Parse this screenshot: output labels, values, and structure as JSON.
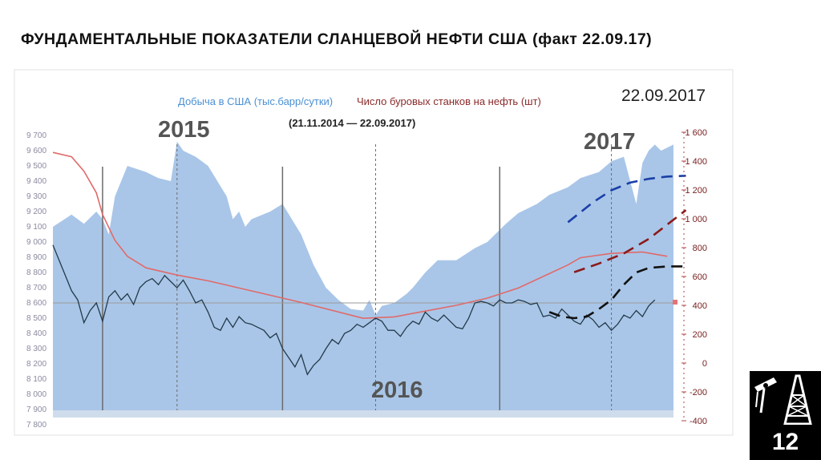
{
  "slide": {
    "title": "ФУНДАМЕНТАЛЬНЫЕ ПОКАЗАТЕЛИ СЛАНЦЕВОЙ НЕФТИ США (факт 22.09.17)",
    "page_number": "12"
  },
  "chart_data": {
    "type": "area",
    "title_part1": "Добыча в США (тыс.барр/сутки)",
    "title_part2": "Число буровых станков на нефть (шт)",
    "subtitle": "(21.11.2014 — 22.09.2017)",
    "date_stamp": "22.09.2017",
    "year_labels": [
      "2015",
      "2016",
      "2017"
    ],
    "left_axis": {
      "ticks": [
        7800,
        7900,
        8000,
        8100,
        8200,
        8300,
        8400,
        8500,
        8600,
        8700,
        8800,
        8900,
        9000,
        9100,
        9200,
        9300,
        9400,
        9500,
        9600,
        9700
      ],
      "ylim": [
        7800,
        9700
      ]
    },
    "right_axis": {
      "ticks": [
        -400,
        -200,
        0,
        200,
        400,
        600,
        800,
        1000,
        1200,
        1400,
        1600
      ],
      "ylim": [
        -400,
        1600
      ]
    },
    "series": [
      {
        "name": "Добыча в США (тыс.барр/сутки)",
        "axis": "left",
        "color": "#a9c6e8",
        "x": [
          0,
          0.03,
          0.05,
          0.07,
          0.08,
          0.09,
          0.1,
          0.12,
          0.15,
          0.17,
          0.19,
          0.2,
          0.21,
          0.23,
          0.25,
          0.28,
          0.29,
          0.3,
          0.31,
          0.32,
          0.35,
          0.37,
          0.4,
          0.42,
          0.44,
          0.46,
          0.48,
          0.5,
          0.51,
          0.52,
          0.53,
          0.55,
          0.57,
          0.58,
          0.6,
          0.62,
          0.65,
          0.68,
          0.7,
          0.71,
          0.73,
          0.75,
          0.78,
          0.8,
          0.83,
          0.85,
          0.88,
          0.9,
          0.92,
          0.94,
          0.95,
          0.96,
          0.97,
          0.98,
          1.0
        ],
        "values": [
          9100,
          9180,
          9120,
          9200,
          9150,
          9050,
          9300,
          9500,
          9460,
          9420,
          9400,
          9660,
          9600,
          9560,
          9500,
          9300,
          9150,
          9200,
          9100,
          9150,
          9200,
          9250,
          9050,
          8850,
          8700,
          8620,
          8560,
          8550,
          8620,
          8520,
          8580,
          8600,
          8660,
          8700,
          8800,
          8880,
          8880,
          8960,
          9000,
          9040,
          9120,
          9190,
          9250,
          9310,
          9360,
          9420,
          9460,
          9530,
          9560,
          9250,
          9520,
          9600,
          9640,
          9600,
          9640
        ]
      },
      {
        "name": "Число буровых станков на нефть (шт)",
        "axis": "right",
        "color": "#e06a6a",
        "x": [
          0,
          0.03,
          0.05,
          0.07,
          0.08,
          0.1,
          0.12,
          0.15,
          0.2,
          0.25,
          0.3,
          0.4,
          0.5,
          0.55,
          0.6,
          0.65,
          0.7,
          0.75,
          0.8,
          0.83,
          0.85,
          0.9,
          0.95,
          0.99
        ],
        "values": [
          1460,
          1430,
          1330,
          1180,
          1030,
          850,
          740,
          660,
          610,
          570,
          520,
          420,
          310,
          320,
          360,
          400,
          450,
          520,
          620,
          680,
          730,
          760,
          770,
          740
        ]
      },
      {
        "name": "Forecast production (dashed blue)",
        "axis": "left",
        "color": "#1b3fa8",
        "x": [
          0.83,
          0.87,
          0.9,
          0.93,
          0.96,
          0.99,
          1.02
        ],
        "values": [
          9130,
          9260,
          9340,
          9390,
          9415,
          9430,
          9435
        ]
      },
      {
        "name": "Forecast rigs (dashed dark red)",
        "axis": "right",
        "color": "#8b1a1a",
        "x": [
          0.84,
          0.88,
          0.92,
          0.96,
          0.99,
          1.02
        ],
        "values": [
          630,
          690,
          760,
          860,
          960,
          1060
        ]
      },
      {
        "name": "Price (black line)",
        "axis": "left",
        "color": "#233a4a",
        "x": [
          0,
          0.01,
          0.02,
          0.03,
          0.04,
          0.05,
          0.06,
          0.07,
          0.08,
          0.09,
          0.1,
          0.11,
          0.12,
          0.13,
          0.14,
          0.15,
          0.16,
          0.17,
          0.18,
          0.19,
          0.2,
          0.21,
          0.22,
          0.23,
          0.24,
          0.25,
          0.26,
          0.27,
          0.28,
          0.29,
          0.3,
          0.31,
          0.32,
          0.33,
          0.34,
          0.35,
          0.36,
          0.37,
          0.38,
          0.39,
          0.4,
          0.41,
          0.42,
          0.43,
          0.44,
          0.45,
          0.46,
          0.47,
          0.48,
          0.49,
          0.5,
          0.51,
          0.52,
          0.53,
          0.54,
          0.55,
          0.56,
          0.57,
          0.58,
          0.59,
          0.6,
          0.61,
          0.62,
          0.63,
          0.64,
          0.65,
          0.66,
          0.67,
          0.68,
          0.69,
          0.7,
          0.71,
          0.72,
          0.73,
          0.74,
          0.75,
          0.76,
          0.77,
          0.78,
          0.79,
          0.8,
          0.81,
          0.82,
          0.83,
          0.84,
          0.85,
          0.86,
          0.87,
          0.88,
          0.89,
          0.9,
          0.91,
          0.92,
          0.93,
          0.94,
          0.95,
          0.96,
          0.97
        ],
        "values": [
          8980,
          8880,
          8780,
          8680,
          8620,
          8470,
          8550,
          8600,
          8480,
          8640,
          8680,
          8620,
          8660,
          8590,
          8700,
          8740,
          8760,
          8720,
          8780,
          8740,
          8700,
          8750,
          8680,
          8600,
          8620,
          8540,
          8440,
          8420,
          8500,
          8440,
          8510,
          8470,
          8460,
          8440,
          8420,
          8370,
          8400,
          8300,
          8240,
          8180,
          8260,
          8130,
          8190,
          8230,
          8300,
          8360,
          8330,
          8400,
          8420,
          8460,
          8440,
          8470,
          8500,
          8480,
          8420,
          8420,
          8380,
          8440,
          8480,
          8460,
          8540,
          8500,
          8480,
          8520,
          8480,
          8440,
          8430,
          8500,
          8600,
          8610,
          8600,
          8580,
          8620,
          8600,
          8600,
          8620,
          8610,
          8590,
          8600,
          8510,
          8520,
          8500,
          8560,
          8520,
          8480,
          8460,
          8520,
          8490,
          8440,
          8470,
          8420,
          8460,
          8520,
          8500,
          8550,
          8510,
          8580,
          8620
        ]
      },
      {
        "name": "Forecast price (black dashed)",
        "axis": "left",
        "color": "#111111",
        "x": [
          0.8,
          0.82,
          0.84,
          0.86,
          0.88,
          0.9,
          0.92,
          0.94,
          0.96,
          0.99,
          1.02
        ],
        "values": [
          8540,
          8510,
          8500,
          8510,
          8560,
          8620,
          8720,
          8800,
          8830,
          8840,
          8840
        ]
      }
    ],
    "vertical_lines": [
      0.08,
      0.37,
      0.72
    ],
    "dashed_lines": [
      0.2,
      0.52,
      0.9
    ],
    "horizontal_line": {
      "axis": "left",
      "value": 8600
    },
    "grid": false
  }
}
